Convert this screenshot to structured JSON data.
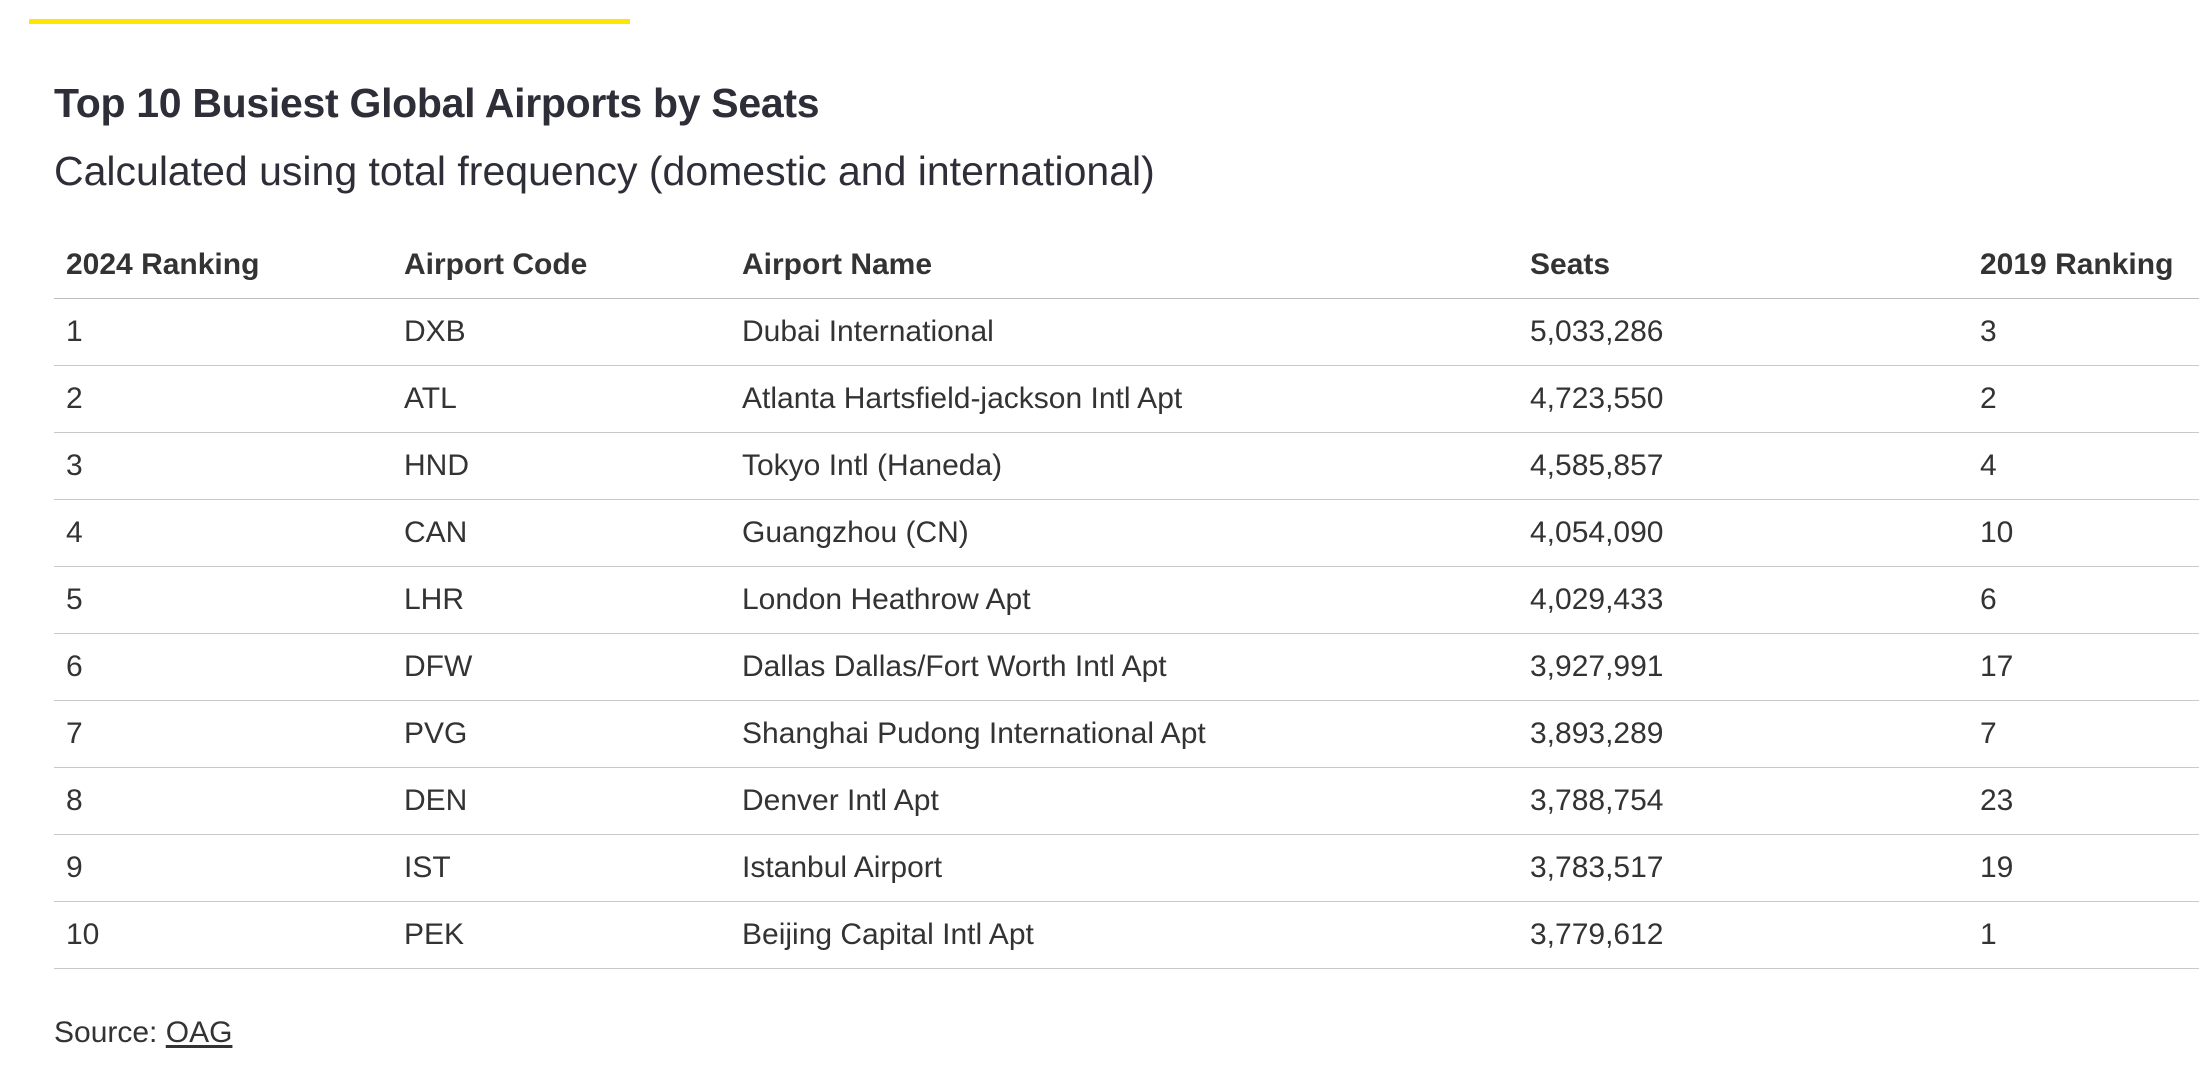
{
  "header": {
    "title": "Top 10 Busiest Global Airports by Seats",
    "subtitle": "Calculated using total frequency (domestic and international)"
  },
  "table": {
    "columns": [
      "2024 Ranking",
      "Airport Code",
      "Airport Name",
      "Seats",
      "2019 Ranking"
    ],
    "rows": [
      {
        "rank_2024": "1",
        "code": "DXB",
        "name": "Dubai International",
        "seats": "5,033,286",
        "rank_2019": "3"
      },
      {
        "rank_2024": "2",
        "code": "ATL",
        "name": "Atlanta Hartsfield-jackson Intl Apt",
        "seats": "4,723,550",
        "rank_2019": "2"
      },
      {
        "rank_2024": "3",
        "code": "HND",
        "name": "Tokyo Intl (Haneda)",
        "seats": "4,585,857",
        "rank_2019": "4"
      },
      {
        "rank_2024": "4",
        "code": "CAN",
        "name": "Guangzhou (CN)",
        "seats": "4,054,090",
        "rank_2019": "10"
      },
      {
        "rank_2024": "5",
        "code": "LHR",
        "name": "London Heathrow Apt",
        "seats": "4,029,433",
        "rank_2019": "6"
      },
      {
        "rank_2024": "6",
        "code": "DFW",
        "name": "Dallas Dallas/Fort Worth Intl Apt",
        "seats": "3,927,991",
        "rank_2019": "17"
      },
      {
        "rank_2024": "7",
        "code": "PVG",
        "name": "Shanghai Pudong International Apt",
        "seats": "3,893,289",
        "rank_2019": "7"
      },
      {
        "rank_2024": "8",
        "code": "DEN",
        "name": "Denver Intl Apt",
        "seats": "3,788,754",
        "rank_2019": "23"
      },
      {
        "rank_2024": "9",
        "code": "IST",
        "name": "Istanbul Airport",
        "seats": "3,783,517",
        "rank_2019": "19"
      },
      {
        "rank_2024": "10",
        "code": "PEK",
        "name": "Beijing Capital Intl Apt",
        "seats": "3,779,612",
        "rank_2019": "1"
      }
    ]
  },
  "footer": {
    "source_label": "Source: ",
    "source_link": "OAG"
  },
  "colors": {
    "accent": "#ffe600",
    "text": "#333333",
    "title": "#2e2e38",
    "divider": "#c9c9c9"
  }
}
